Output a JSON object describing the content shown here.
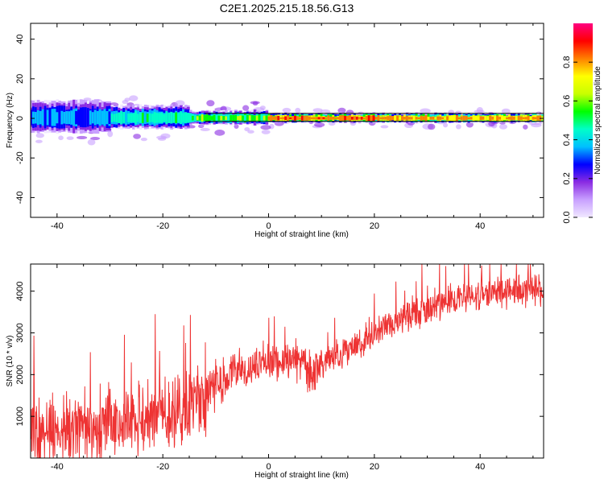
{
  "page_title": "C2E1.2025.215.18.56.G13",
  "chart_data": [
    {
      "type": "heatmap",
      "xlabel": "Height of straight line (km)",
      "ylabel": "Frequency (Hz)",
      "xlim": [
        -45,
        52
      ],
      "ylim": [
        -50,
        48
      ],
      "xticks": [
        -40,
        -20,
        0,
        20,
        40
      ],
      "yticks": [
        -40,
        -20,
        0,
        20,
        40
      ],
      "colorbar": {
        "label": "Normalized spectral amplitude",
        "range": [
          0,
          1
        ],
        "ticks": [
          0.0,
          0.2,
          0.4,
          0.6,
          0.8
        ]
      },
      "colormap": [
        "#f0e8ff",
        "#c8a0ff",
        "#8a2be2",
        "#0000ff",
        "#00c0ff",
        "#00ffc8",
        "#00ff00",
        "#c8ff00",
        "#ffff00",
        "#ff8000",
        "#ff0000",
        "#ff0080"
      ],
      "band": {
        "center_freq_hz": 0,
        "segments": [
          {
            "x_start": -45,
            "x_end": -30,
            "halfwidth_hz": 7,
            "peak_amplitude": 0.3
          },
          {
            "x_start": -30,
            "x_end": -15,
            "halfwidth_hz": 5,
            "peak_amplitude": 0.45
          },
          {
            "x_start": -15,
            "x_end": 0,
            "halfwidth_hz": 3,
            "peak_amplitude": 0.55
          },
          {
            "x_start": 0,
            "x_end": 20,
            "halfwidth_hz": 2,
            "peak_amplitude": 0.9
          },
          {
            "x_start": 20,
            "x_end": 52,
            "halfwidth_hz": 2,
            "peak_amplitude": 0.85
          }
        ]
      }
    },
    {
      "type": "line",
      "xlabel": "Height of straight line (km)",
      "ylabel": "SNR (10 * v/v)",
      "xlim": [
        -45,
        52
      ],
      "ylim": [
        0,
        4650
      ],
      "xticks": [
        -40,
        -20,
        0,
        20,
        40
      ],
      "yticks": [
        1000,
        2000,
        3000,
        4000
      ],
      "line_color": "#ee3333",
      "trend": {
        "x": [
          -45,
          -40,
          -35,
          -30,
          -25,
          -20,
          -15,
          -12,
          -10,
          -5,
          0,
          5,
          8,
          10,
          15,
          20,
          25,
          30,
          35,
          40,
          45,
          52
        ],
        "y": [
          700,
          750,
          800,
          900,
          900,
          1000,
          1200,
          1500,
          1800,
          2100,
          2300,
          2400,
          2100,
          2300,
          2600,
          3000,
          3300,
          3600,
          3800,
          3900,
          4000,
          4000
        ]
      },
      "noise_amplitude": [
        {
          "x_start": -45,
          "x_end": -10,
          "amplitude": 900
        },
        {
          "x_start": -10,
          "x_end": 10,
          "amplitude": 500
        },
        {
          "x_start": 10,
          "x_end": 52,
          "amplitude": 400
        }
      ]
    }
  ]
}
